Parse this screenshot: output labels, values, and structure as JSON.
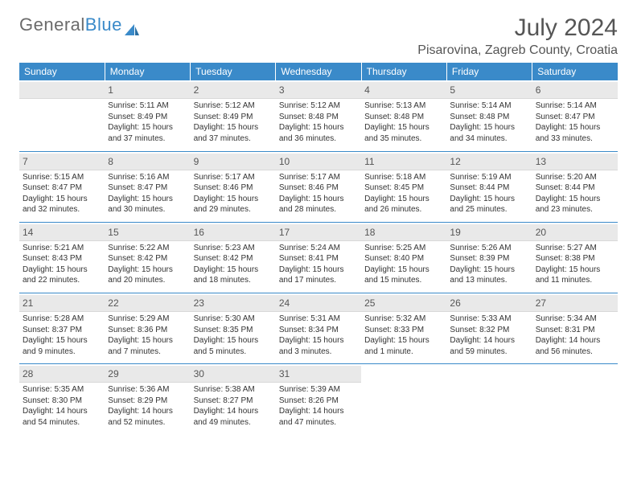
{
  "logo": {
    "t1": "General",
    "t2": "Blue"
  },
  "title": "July 2024",
  "location": "Pisarovina, Zagreb County, Croatia",
  "header_bg": "#3a8ac9",
  "daynames": [
    "Sunday",
    "Monday",
    "Tuesday",
    "Wednesday",
    "Thursday",
    "Friday",
    "Saturday"
  ],
  "weeks": [
    [
      null,
      {
        "n": "1",
        "sr": "Sunrise: 5:11 AM",
        "ss": "Sunset: 8:49 PM",
        "dl": "Daylight: 15 hours and 37 minutes."
      },
      {
        "n": "2",
        "sr": "Sunrise: 5:12 AM",
        "ss": "Sunset: 8:49 PM",
        "dl": "Daylight: 15 hours and 37 minutes."
      },
      {
        "n": "3",
        "sr": "Sunrise: 5:12 AM",
        "ss": "Sunset: 8:48 PM",
        "dl": "Daylight: 15 hours and 36 minutes."
      },
      {
        "n": "4",
        "sr": "Sunrise: 5:13 AM",
        "ss": "Sunset: 8:48 PM",
        "dl": "Daylight: 15 hours and 35 minutes."
      },
      {
        "n": "5",
        "sr": "Sunrise: 5:14 AM",
        "ss": "Sunset: 8:48 PM",
        "dl": "Daylight: 15 hours and 34 minutes."
      },
      {
        "n": "6",
        "sr": "Sunrise: 5:14 AM",
        "ss": "Sunset: 8:47 PM",
        "dl": "Daylight: 15 hours and 33 minutes."
      }
    ],
    [
      {
        "n": "7",
        "sr": "Sunrise: 5:15 AM",
        "ss": "Sunset: 8:47 PM",
        "dl": "Daylight: 15 hours and 32 minutes."
      },
      {
        "n": "8",
        "sr": "Sunrise: 5:16 AM",
        "ss": "Sunset: 8:47 PM",
        "dl": "Daylight: 15 hours and 30 minutes."
      },
      {
        "n": "9",
        "sr": "Sunrise: 5:17 AM",
        "ss": "Sunset: 8:46 PM",
        "dl": "Daylight: 15 hours and 29 minutes."
      },
      {
        "n": "10",
        "sr": "Sunrise: 5:17 AM",
        "ss": "Sunset: 8:46 PM",
        "dl": "Daylight: 15 hours and 28 minutes."
      },
      {
        "n": "11",
        "sr": "Sunrise: 5:18 AM",
        "ss": "Sunset: 8:45 PM",
        "dl": "Daylight: 15 hours and 26 minutes."
      },
      {
        "n": "12",
        "sr": "Sunrise: 5:19 AM",
        "ss": "Sunset: 8:44 PM",
        "dl": "Daylight: 15 hours and 25 minutes."
      },
      {
        "n": "13",
        "sr": "Sunrise: 5:20 AM",
        "ss": "Sunset: 8:44 PM",
        "dl": "Daylight: 15 hours and 23 minutes."
      }
    ],
    [
      {
        "n": "14",
        "sr": "Sunrise: 5:21 AM",
        "ss": "Sunset: 8:43 PM",
        "dl": "Daylight: 15 hours and 22 minutes."
      },
      {
        "n": "15",
        "sr": "Sunrise: 5:22 AM",
        "ss": "Sunset: 8:42 PM",
        "dl": "Daylight: 15 hours and 20 minutes."
      },
      {
        "n": "16",
        "sr": "Sunrise: 5:23 AM",
        "ss": "Sunset: 8:42 PM",
        "dl": "Daylight: 15 hours and 18 minutes."
      },
      {
        "n": "17",
        "sr": "Sunrise: 5:24 AM",
        "ss": "Sunset: 8:41 PM",
        "dl": "Daylight: 15 hours and 17 minutes."
      },
      {
        "n": "18",
        "sr": "Sunrise: 5:25 AM",
        "ss": "Sunset: 8:40 PM",
        "dl": "Daylight: 15 hours and 15 minutes."
      },
      {
        "n": "19",
        "sr": "Sunrise: 5:26 AM",
        "ss": "Sunset: 8:39 PM",
        "dl": "Daylight: 15 hours and 13 minutes."
      },
      {
        "n": "20",
        "sr": "Sunrise: 5:27 AM",
        "ss": "Sunset: 8:38 PM",
        "dl": "Daylight: 15 hours and 11 minutes."
      }
    ],
    [
      {
        "n": "21",
        "sr": "Sunrise: 5:28 AM",
        "ss": "Sunset: 8:37 PM",
        "dl": "Daylight: 15 hours and 9 minutes."
      },
      {
        "n": "22",
        "sr": "Sunrise: 5:29 AM",
        "ss": "Sunset: 8:36 PM",
        "dl": "Daylight: 15 hours and 7 minutes."
      },
      {
        "n": "23",
        "sr": "Sunrise: 5:30 AM",
        "ss": "Sunset: 8:35 PM",
        "dl": "Daylight: 15 hours and 5 minutes."
      },
      {
        "n": "24",
        "sr": "Sunrise: 5:31 AM",
        "ss": "Sunset: 8:34 PM",
        "dl": "Daylight: 15 hours and 3 minutes."
      },
      {
        "n": "25",
        "sr": "Sunrise: 5:32 AM",
        "ss": "Sunset: 8:33 PM",
        "dl": "Daylight: 15 hours and 1 minute."
      },
      {
        "n": "26",
        "sr": "Sunrise: 5:33 AM",
        "ss": "Sunset: 8:32 PM",
        "dl": "Daylight: 14 hours and 59 minutes."
      },
      {
        "n": "27",
        "sr": "Sunrise: 5:34 AM",
        "ss": "Sunset: 8:31 PM",
        "dl": "Daylight: 14 hours and 56 minutes."
      }
    ],
    [
      {
        "n": "28",
        "sr": "Sunrise: 5:35 AM",
        "ss": "Sunset: 8:30 PM",
        "dl": "Daylight: 14 hours and 54 minutes."
      },
      {
        "n": "29",
        "sr": "Sunrise: 5:36 AM",
        "ss": "Sunset: 8:29 PM",
        "dl": "Daylight: 14 hours and 52 minutes."
      },
      {
        "n": "30",
        "sr": "Sunrise: 5:38 AM",
        "ss": "Sunset: 8:27 PM",
        "dl": "Daylight: 14 hours and 49 minutes."
      },
      {
        "n": "31",
        "sr": "Sunrise: 5:39 AM",
        "ss": "Sunset: 8:26 PM",
        "dl": "Daylight: 14 hours and 47 minutes."
      },
      null,
      null,
      null
    ]
  ]
}
